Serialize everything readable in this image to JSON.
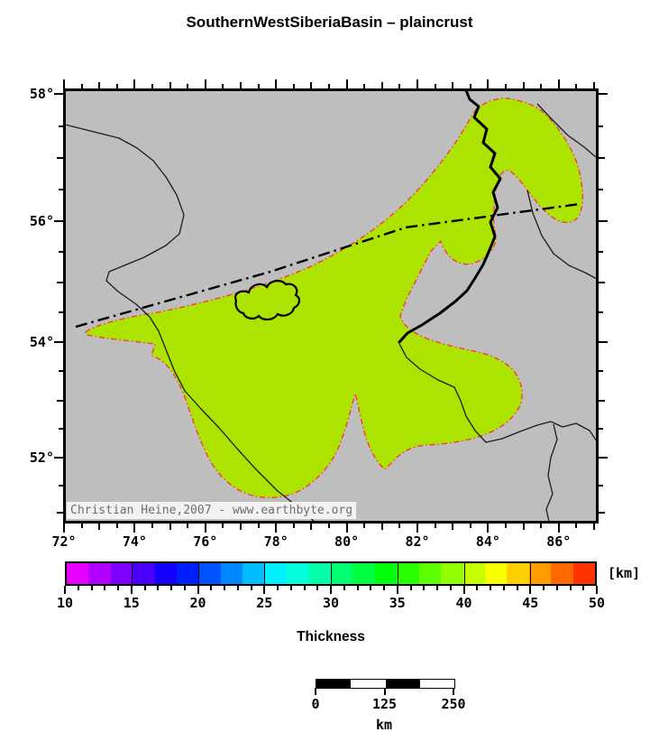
{
  "title": "SouthernWestSiberiaBasin – plaincrust",
  "map": {
    "attribution": "Christian Heine,2007 - www.earthbyte.org",
    "lat_ticks": [
      {
        "value": 58,
        "label": "58°"
      },
      {
        "value": 56,
        "label": "56°"
      },
      {
        "value": 54,
        "label": "54°"
      },
      {
        "value": 52,
        "label": "52°"
      }
    ],
    "lon_ticks": [
      {
        "value": 72,
        "label": "72°"
      },
      {
        "value": 74,
        "label": "74°"
      },
      {
        "value": 76,
        "label": "76°"
      },
      {
        "value": 78,
        "label": "78°"
      },
      {
        "value": 80,
        "label": "80°"
      },
      {
        "value": 82,
        "label": "82°"
      },
      {
        "value": 84,
        "label": "84°"
      },
      {
        "value": 86,
        "label": "86°"
      },
      {
        "value": 88,
        "label": ""
      }
    ],
    "lon_range": [
      72,
      87
    ],
    "lat_range": [
      51,
      58
    ],
    "minor_tick_step_deg": 0.5
  },
  "colorbar": {
    "min": 10,
    "max": 50,
    "minor_tick_step": 1,
    "major_tick_step": 5,
    "tick_labels": [
      "10",
      "15",
      "20",
      "25",
      "30",
      "35",
      "40",
      "45",
      "50"
    ],
    "unit": "[km]",
    "title": "Thickness",
    "n_blocks": 24,
    "hue_start": 300,
    "hue_end": 6
  },
  "scalebar": {
    "tick_labels": [
      "0",
      "125",
      "250"
    ],
    "unit": "km",
    "segments": 4
  },
  "colors": {
    "background": "#FFFFFF",
    "land": "#BEBEBE",
    "basin_main": "#ADE301",
    "basin_green": "#33CF05",
    "basin_green2": "#16D437",
    "basin_yellow": "#FFE60A",
    "basin_orange": "#FFA400",
    "outline_red": "#FF3232",
    "border_line": "#1C1C1C",
    "river": "#000000",
    "fault": "#000000",
    "frame": "#000000",
    "attribution_bg": "#F2F2F2",
    "attribution_text": "#6E6E6E"
  }
}
